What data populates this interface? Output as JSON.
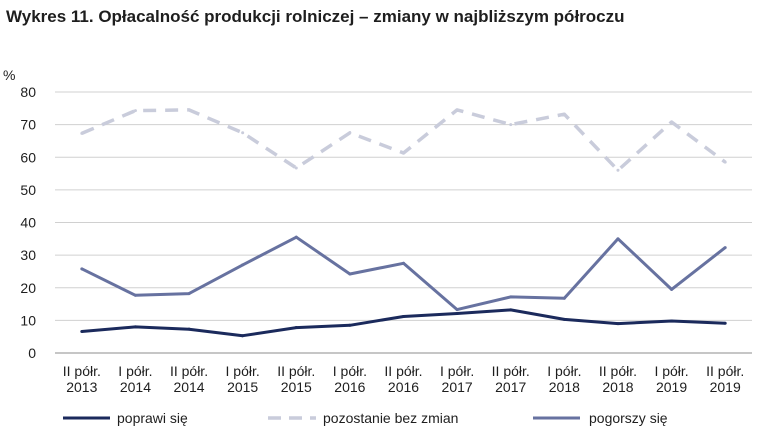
{
  "chart_data": {
    "type": "line",
    "title": "Wykres 11. Opłacalność produkcji rolniczej –  zmiany w najbliższym półroczu",
    "ylabel": "%",
    "ylim": [
      0,
      80
    ],
    "yticks": [
      0,
      10,
      20,
      30,
      40,
      50,
      60,
      70,
      80
    ],
    "grid": true,
    "legend_position": "bottom",
    "categories": [
      [
        "II półr.",
        "2013"
      ],
      [
        "I półr.",
        "2014"
      ],
      [
        "II półr.",
        "2014"
      ],
      [
        "I półr.",
        "2015"
      ],
      [
        "II półr.",
        "2015"
      ],
      [
        "I półr.",
        "2016"
      ],
      [
        "II półr.",
        "2016"
      ],
      [
        "I półr.",
        "2017"
      ],
      [
        "II półr.",
        "2017"
      ],
      [
        "I półr.",
        "2018"
      ],
      [
        "II półr.",
        "2018"
      ],
      [
        "I półr.",
        "2019"
      ],
      [
        "II półr.",
        "2019"
      ]
    ],
    "series": [
      {
        "name": "poprawi się",
        "color": "#1b2a5c",
        "style": "solid",
        "values": [
          6.6,
          8.0,
          7.3,
          5.3,
          7.8,
          8.5,
          11.2,
          12.1,
          13.2,
          10.3,
          9.0,
          9.8,
          9.1
        ]
      },
      {
        "name": "pozostanie bez zmian",
        "color": "#c9ccdb",
        "style": "dashed",
        "values": [
          67.3,
          74.3,
          74.5,
          67.5,
          56.7,
          67.5,
          61.3,
          74.5,
          70.0,
          73.2,
          56.0,
          70.8,
          58.5
        ]
      },
      {
        "name": "pogorszy się",
        "color": "#6772a0",
        "style": "solid",
        "values": [
          25.8,
          17.7,
          18.2,
          27.0,
          35.5,
          24.2,
          27.5,
          13.3,
          17.2,
          16.8,
          35.0,
          19.5,
          32.3
        ]
      }
    ]
  }
}
